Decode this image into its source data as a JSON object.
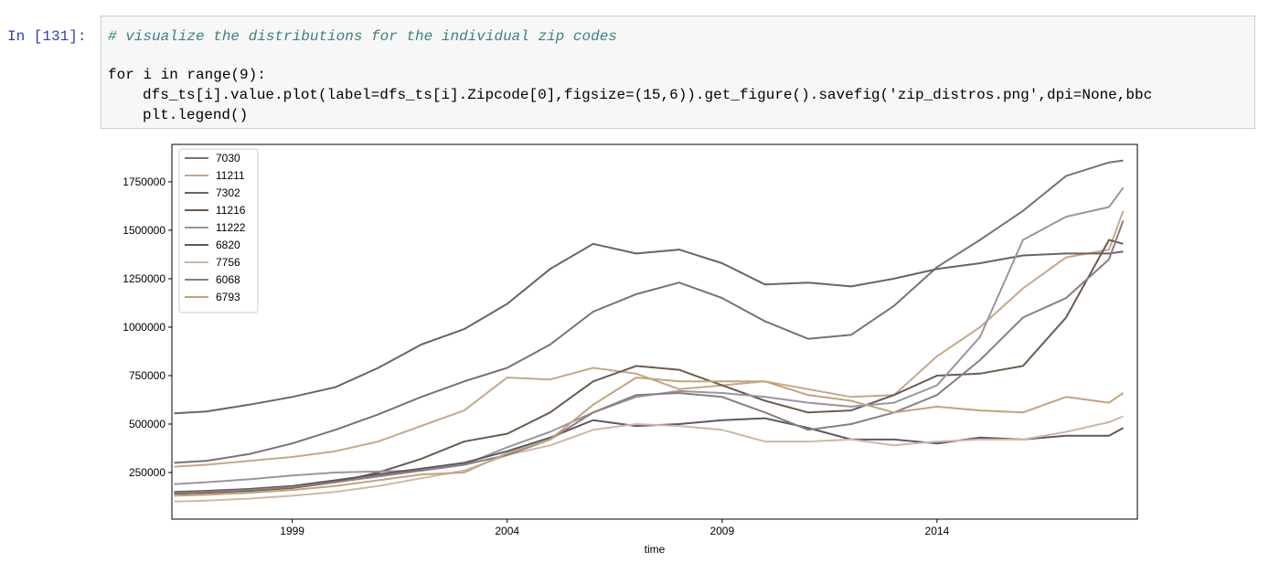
{
  "cell": {
    "prompt": "In [131]:",
    "code": [
      "# visualize the distributions for the individual zip codes",
      "for i in range(9):",
      "dfs_ts[i].value.plot(label=dfs_ts[i].Zipcode[0],figsize=(15,6)).get_figure().savefig('zip_distros.png',dpi=None,bbc",
      "plt.legend()"
    ]
  },
  "chart_data": {
    "type": "line",
    "xlabel": "time",
    "x": [
      1996.25,
      1997,
      1998,
      1999,
      2000,
      2001,
      2002,
      2003,
      2004,
      2005,
      2006,
      2007,
      2008,
      2009,
      2010,
      2011,
      2012,
      2013,
      2014,
      2015,
      2016,
      2017,
      2018,
      2018.33
    ],
    "xlim": [
      1996.2,
      2018.66
    ],
    "xticks": [
      1999,
      2004,
      2009,
      2014
    ],
    "ylim": [
      9400,
      1943000
    ],
    "yticks": [
      250000,
      500000,
      750000,
      1000000,
      1250000,
      1500000,
      1750000
    ],
    "grid": false,
    "legend": "upper left",
    "series": [
      {
        "name": "7030",
        "color": "#7b6f79",
        "values": [
          300000,
          310000,
          345000,
          400000,
          470000,
          550000,
          640000,
          720000,
          790000,
          910000,
          1080000,
          1170000,
          1230000,
          1150000,
          1030000,
          940000,
          960000,
          1110000,
          1310000,
          1450000,
          1600000,
          1780000,
          1850000,
          1860000
        ]
      },
      {
        "name": "11211",
        "color": "#c4a88a",
        "values": [
          280000,
          290000,
          310000,
          330000,
          360000,
          410000,
          490000,
          570000,
          740000,
          730000,
          790000,
          760000,
          680000,
          700000,
          720000,
          680000,
          640000,
          650000,
          850000,
          1000000,
          1200000,
          1360000,
          1400000,
          1600000
        ]
      },
      {
        "name": "7302",
        "color": "#6e6262",
        "values": [
          555000,
          565000,
          600000,
          640000,
          690000,
          790000,
          910000,
          990000,
          1120000,
          1300000,
          1430000,
          1380000,
          1400000,
          1330000,
          1220000,
          1230000,
          1210000,
          1250000,
          1300000,
          1330000,
          1370000,
          1380000,
          1380000,
          1390000
        ]
      },
      {
        "name": "11216",
        "color": "#6b5c4e",
        "values": [
          140000,
          145000,
          155000,
          170000,
          200000,
          250000,
          320000,
          410000,
          450000,
          560000,
          720000,
          800000,
          780000,
          700000,
          620000,
          560000,
          570000,
          650000,
          750000,
          760000,
          800000,
          1050000,
          1450000,
          1430000
        ]
      },
      {
        "name": "11222",
        "color": "#9a94a0",
        "values": [
          190000,
          200000,
          215000,
          235000,
          250000,
          255000,
          260000,
          290000,
          380000,
          460000,
          560000,
          640000,
          670000,
          660000,
          640000,
          610000,
          590000,
          610000,
          700000,
          950000,
          1450000,
          1570000,
          1620000,
          1720000
        ]
      },
      {
        "name": "6820",
        "color": "#5e5860",
        "values": [
          150000,
          155000,
          165000,
          180000,
          210000,
          240000,
          270000,
          300000,
          360000,
          430000,
          520000,
          490000,
          500000,
          520000,
          530000,
          480000,
          420000,
          420000,
          400000,
          430000,
          420000,
          440000,
          440000,
          480000
        ]
      },
      {
        "name": "7756",
        "color": "#cdb8a8",
        "values": [
          100000,
          105000,
          115000,
          130000,
          150000,
          180000,
          220000,
          260000,
          340000,
          390000,
          470000,
          500000,
          490000,
          470000,
          410000,
          410000,
          420000,
          390000,
          410000,
          420000,
          420000,
          460000,
          510000,
          540000
        ]
      },
      {
        "name": "6068",
        "color": "#8c7c80",
        "values": [
          145000,
          150000,
          160000,
          175000,
          200000,
          230000,
          260000,
          290000,
          340000,
          420000,
          560000,
          650000,
          660000,
          640000,
          560000,
          470000,
          500000,
          560000,
          650000,
          830000,
          1050000,
          1150000,
          1350000,
          1550000
        ]
      },
      {
        "name": "6793",
        "color": "#c0a47c",
        "values": [
          130000,
          135000,
          145000,
          160000,
          180000,
          210000,
          240000,
          250000,
          350000,
          420000,
          600000,
          740000,
          720000,
          720000,
          720000,
          650000,
          620000,
          560000,
          590000,
          570000,
          560000,
          640000,
          610000,
          660000
        ]
      }
    ]
  }
}
